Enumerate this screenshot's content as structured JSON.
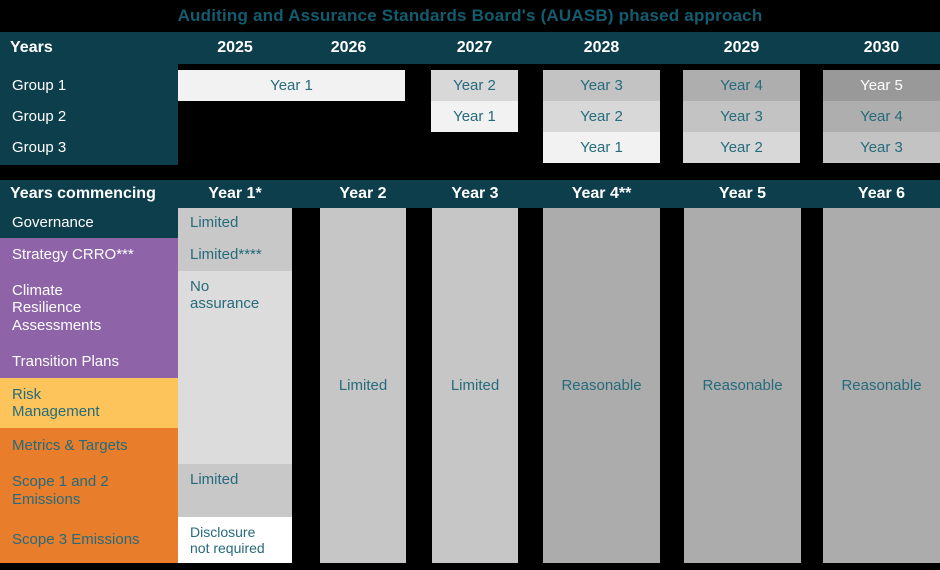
{
  "title": "Auditing and Assurance Standards Board's (AUASB) phased approach",
  "palette": {
    "background": "#000000",
    "header_teal": "#0D3E4C",
    "title_text_teal": "#135C70",
    "cell_text_teal": "#256B7B",
    "purple": "#8E63A8",
    "yellow": "#FDC45C",
    "orange": "#E87D2C",
    "gray_year1": "#F2F2F2",
    "gray_year2": "#D8D8D8",
    "gray_year3": "#C3C3C3",
    "gray_year4": "#AEAEAE",
    "gray_year5": "#999999",
    "gray_limited": "#C8C8C8",
    "gray_no_assurance": "#DCDCDC",
    "gray_reasonable": "#ACACAC",
    "white": "#FFFFFF"
  },
  "chart_data": [
    {
      "type": "table",
      "title": "Auditing and Assurance Standards Board's (AUASB) phased approach",
      "corner": "Years",
      "columns": [
        "2025",
        "2026",
        "2027",
        "2028",
        "2029",
        "2030"
      ],
      "rows": [
        {
          "label": "Group 1",
          "cells": [
            {
              "text": "Year 1",
              "years": "2025-2026"
            },
            {
              "text": "Year 2",
              "years": "2027"
            },
            {
              "text": "Year 3",
              "years": "2028"
            },
            {
              "text": "Year 4",
              "years": "2029"
            },
            {
              "text": "Year 5",
              "years": "2030"
            }
          ]
        },
        {
          "label": "Group 2",
          "cells": [
            {
              "text": "Year 1",
              "years": "2027"
            },
            {
              "text": "Year 2",
              "years": "2028"
            },
            {
              "text": "Year 3",
              "years": "2029"
            },
            {
              "text": "Year 4",
              "years": "2030"
            }
          ]
        },
        {
          "label": "Group 3",
          "cells": [
            {
              "text": "Year 1",
              "years": "2028"
            },
            {
              "text": "Year 2",
              "years": "2029"
            },
            {
              "text": "Year 3",
              "years": "2030"
            }
          ]
        }
      ]
    },
    {
      "type": "table",
      "corner": "Years commencing",
      "columns": [
        "Year 1*",
        "Year 2",
        "Year 3",
        "Year 4**",
        "Year 5",
        "Year 6"
      ],
      "row_labels": [
        "Governance",
        "Strategy CRRO***",
        "Climate Resilience Assessments",
        "Transition Plans",
        "Risk Management",
        "Metrics & Targets",
        "Scope 1 and 2 Emissions",
        "Scope 3 Emissions"
      ],
      "year1_cells": [
        {
          "row": "Governance",
          "text": "Limited"
        },
        {
          "row": "Strategy CRRO***",
          "text": "Limited****"
        },
        {
          "row": "Climate Resilience Assessments / Transition Plans / Risk Management / Metrics & Targets",
          "text": "No assurance"
        },
        {
          "row": "Scope 1 and 2 Emissions",
          "text": "Limited"
        },
        {
          "row": "Scope 3 Emissions",
          "text": "Disclosure not required"
        }
      ],
      "column_cells": [
        {
          "col": "Year 2",
          "text": "Limited"
        },
        {
          "col": "Year 3",
          "text": "Limited"
        },
        {
          "col": "Year 4**",
          "text": "Reasonable"
        },
        {
          "col": "Year 5",
          "text": "Reasonable"
        },
        {
          "col": "Year 6",
          "text": "Reasonable"
        }
      ]
    }
  ]
}
